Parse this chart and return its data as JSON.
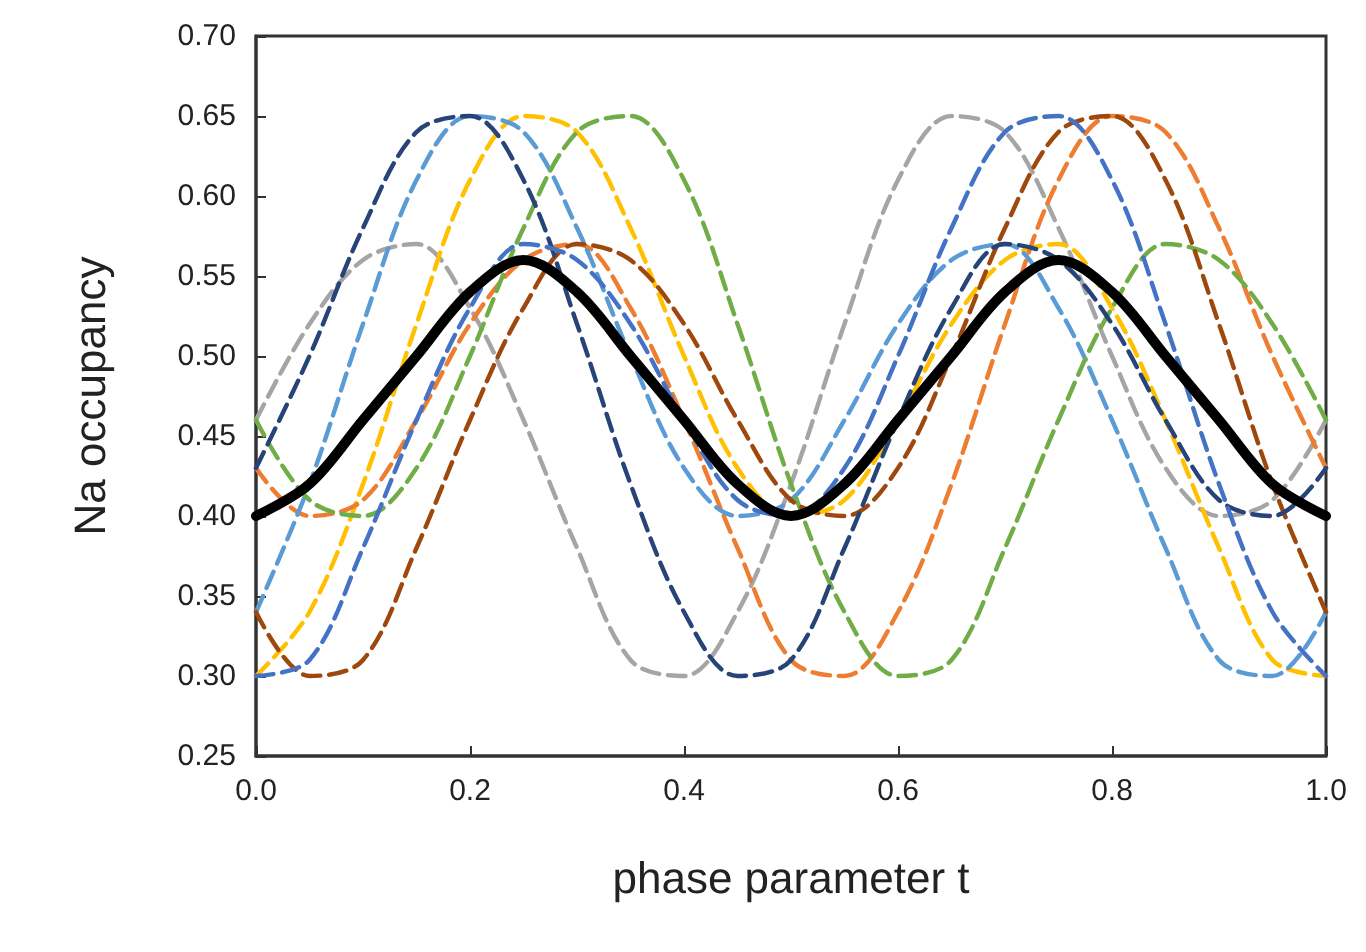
{
  "chart_data": {
    "type": "line",
    "xlabel": "phase parameter t",
    "ylabel": "Na occupancy",
    "x": [
      0,
      0.05,
      0.1,
      0.15,
      0.2,
      0.25,
      0.3,
      0.35,
      0.4,
      0.45,
      0.5,
      0.55,
      0.6,
      0.65,
      0.7,
      0.75,
      0.8,
      0.85,
      0.9,
      0.95,
      1
    ],
    "series": [
      {
        "color": "#a5a5a5",
        "line_style": "dashed",
        "values": [
          0.46,
          0.52,
          0.56,
          0.57,
          0.53,
          0.46,
          0.38,
          0.31,
          0.3,
          0.34,
          0.42,
          0.52,
          0.61,
          0.65,
          0.64,
          0.58,
          0.5,
          0.43,
          0.4,
          0.41,
          0.46
        ]
      },
      {
        "color": "#ffc000",
        "line_style": "dashed",
        "values": [
          0.3,
          0.34,
          0.42,
          0.52,
          0.61,
          0.65,
          0.64,
          0.58,
          0.5,
          0.43,
          0.4,
          0.41,
          0.46,
          0.52,
          0.56,
          0.57,
          0.53,
          0.46,
          0.38,
          0.31,
          0.3
        ]
      },
      {
        "color": "#ed7d31",
        "line_style": "dashed",
        "values": [
          0.43,
          0.4,
          0.41,
          0.46,
          0.52,
          0.56,
          0.57,
          0.53,
          0.46,
          0.38,
          0.31,
          0.3,
          0.34,
          0.42,
          0.52,
          0.61,
          0.65,
          0.64,
          0.58,
          0.5,
          0.43
        ]
      },
      {
        "color": "#5b9bd5",
        "line_style": "dashed",
        "values": [
          0.34,
          0.42,
          0.52,
          0.61,
          0.65,
          0.64,
          0.58,
          0.5,
          0.43,
          0.4,
          0.41,
          0.46,
          0.52,
          0.56,
          0.57,
          0.53,
          0.46,
          0.38,
          0.31,
          0.3,
          0.34
        ]
      },
      {
        "color": "#70ad47",
        "line_style": "dashed",
        "values": [
          0.46,
          0.41,
          0.4,
          0.43,
          0.5,
          0.58,
          0.64,
          0.65,
          0.61,
          0.52,
          0.42,
          0.34,
          0.3,
          0.31,
          0.38,
          0.46,
          0.53,
          0.57,
          0.56,
          0.52,
          0.46
        ]
      },
      {
        "color": "#9e480e",
        "line_style": "dashed",
        "values": [
          0.34,
          0.3,
          0.31,
          0.38,
          0.46,
          0.53,
          0.57,
          0.56,
          0.52,
          0.46,
          0.41,
          0.4,
          0.43,
          0.5,
          0.58,
          0.64,
          0.65,
          0.61,
          0.52,
          0.42,
          0.34
        ]
      },
      {
        "color": "#264478",
        "line_style": "dashed",
        "values": [
          0.43,
          0.5,
          0.58,
          0.64,
          0.65,
          0.61,
          0.52,
          0.42,
          0.34,
          0.3,
          0.31,
          0.38,
          0.46,
          0.53,
          0.57,
          0.56,
          0.52,
          0.46,
          0.41,
          0.4,
          0.43
        ]
      },
      {
        "color": "#4472c4",
        "line_style": "dashed",
        "values": [
          0.3,
          0.31,
          0.38,
          0.46,
          0.53,
          0.57,
          0.56,
          0.52,
          0.46,
          0.41,
          0.4,
          0.43,
          0.5,
          0.58,
          0.64,
          0.65,
          0.61,
          0.52,
          0.42,
          0.34,
          0.3
        ]
      },
      {
        "color": "#000000",
        "line_style": "solid",
        "values": [
          0.4,
          0.42,
          0.46,
          0.5,
          0.54,
          0.56,
          0.54,
          0.5,
          0.46,
          0.42,
          0.4,
          0.42,
          0.46,
          0.5,
          0.54,
          0.56,
          0.54,
          0.5,
          0.46,
          0.42,
          0.4
        ]
      }
    ],
    "xlim": [
      0,
      1
    ],
    "xticks": [
      {
        "value": 0,
        "label": "0.0"
      },
      {
        "value": 0.2,
        "label": "0.2"
      },
      {
        "value": 0.4,
        "label": "0.4"
      },
      {
        "value": 0.6,
        "label": "0.6"
      },
      {
        "value": 0.8,
        "label": "0.8"
      },
      {
        "value": 1,
        "label": "1.0"
      }
    ],
    "ylim": [
      0.25,
      0.7
    ],
    "yticks": [
      {
        "value": 0.25,
        "label": "0.25"
      },
      {
        "value": 0.3,
        "label": "0.30"
      },
      {
        "value": 0.35,
        "label": "0.35"
      },
      {
        "value": 0.4,
        "label": "0.40"
      },
      {
        "value": 0.45,
        "label": "0.45"
      },
      {
        "value": 0.5,
        "label": "0.50"
      },
      {
        "value": 0.55,
        "label": "0.55"
      },
      {
        "value": 0.6,
        "label": "0.60"
      },
      {
        "value": 0.65,
        "label": "0.65"
      },
      {
        "value": 0.7,
        "label": "0.70"
      }
    ],
    "marker": "none"
  }
}
